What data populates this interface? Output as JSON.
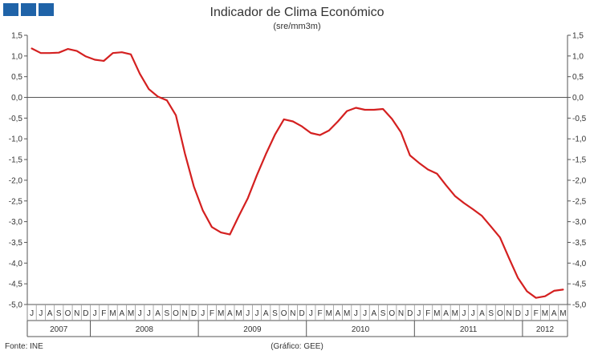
{
  "header": {
    "logo_icon": "ine-logo-squares",
    "logo_color": "#1f63a8"
  },
  "chart_data": {
    "type": "line",
    "title": "Indicador de Clima Económico",
    "subtitle": "(sre/mm3m)",
    "ylim": [
      -5.0,
      1.5
    ],
    "y_ticks": [
      "1,5",
      "1,0",
      "0,5",
      "0,0",
      "-0,5",
      "-1,0",
      "-1,5",
      "-2,0",
      "-2,5",
      "-3,0",
      "-3,5",
      "-4,0",
      "-4,5",
      "-5,0"
    ],
    "y_tick_values": [
      1.5,
      1.0,
      0.5,
      0.0,
      -0.5,
      -1.0,
      -1.5,
      -2.0,
      -2.5,
      -3.0,
      -3.5,
      -4.0,
      -4.5,
      -5.0
    ],
    "month_labels": [
      "J",
      "J",
      "A",
      "S",
      "O",
      "N",
      "D",
      "J",
      "F",
      "M",
      "A",
      "M",
      "J",
      "J",
      "A",
      "S",
      "O",
      "N",
      "D",
      "J",
      "F",
      "M",
      "A",
      "M",
      "J",
      "J",
      "A",
      "S",
      "O",
      "N",
      "D",
      "J",
      "F",
      "M",
      "A",
      "M",
      "J",
      "J",
      "A",
      "S",
      "O",
      "N",
      "D",
      "J",
      "F",
      "M",
      "A",
      "M",
      "J",
      "J",
      "A",
      "S",
      "O",
      "N",
      "D",
      "J",
      "F",
      "M",
      "A",
      "M"
    ],
    "year_labels": [
      "2007",
      "2008",
      "2009",
      "2010",
      "2011",
      "2012"
    ],
    "year_spans": [
      [
        0,
        6
      ],
      [
        7,
        18
      ],
      [
        19,
        30
      ],
      [
        31,
        42
      ],
      [
        43,
        54
      ],
      [
        55,
        59
      ]
    ],
    "grid": false,
    "line_color": "#d42020",
    "x": [
      "2007-06",
      "2007-07",
      "2007-08",
      "2007-09",
      "2007-10",
      "2007-11",
      "2007-12",
      "2008-01",
      "2008-02",
      "2008-03",
      "2008-04",
      "2008-05",
      "2008-06",
      "2008-07",
      "2008-08",
      "2008-09",
      "2008-10",
      "2008-11",
      "2008-12",
      "2009-01",
      "2009-02",
      "2009-03",
      "2009-04",
      "2009-05",
      "2009-06",
      "2009-07",
      "2009-08",
      "2009-09",
      "2009-10",
      "2009-11",
      "2009-12",
      "2010-01",
      "2010-02",
      "2010-03",
      "2010-04",
      "2010-05",
      "2010-06",
      "2010-07",
      "2010-08",
      "2010-09",
      "2010-10",
      "2010-11",
      "2010-12",
      "2011-01",
      "2011-02",
      "2011-03",
      "2011-04",
      "2011-05",
      "2011-06",
      "2011-07",
      "2011-08",
      "2011-09",
      "2011-10",
      "2011-11",
      "2011-12",
      "2012-01",
      "2012-02",
      "2012-03",
      "2012-04",
      "2012-05"
    ],
    "values": [
      1.18,
      1.07,
      1.07,
      1.08,
      1.17,
      1.12,
      0.99,
      0.91,
      0.88,
      1.07,
      1.09,
      1.04,
      0.57,
      0.2,
      0.02,
      -0.07,
      -0.43,
      -1.35,
      -2.15,
      -2.73,
      -3.13,
      -3.26,
      -3.31,
      -2.86,
      -2.43,
      -1.88,
      -1.37,
      -0.9,
      -0.53,
      -0.58,
      -0.7,
      -0.86,
      -0.91,
      -0.8,
      -0.58,
      -0.33,
      -0.25,
      -0.3,
      -0.3,
      -0.28,
      -0.52,
      -0.84,
      -1.4,
      -1.58,
      -1.74,
      -1.84,
      -2.12,
      -2.38,
      -2.55,
      -2.7,
      -2.86,
      -3.12,
      -3.38,
      -3.88,
      -4.36,
      -4.68,
      -4.84,
      -4.8,
      -4.67,
      -4.64
    ]
  },
  "footer": {
    "source": "Fonte: INE",
    "credit": "(Gráfico: GEE)"
  }
}
